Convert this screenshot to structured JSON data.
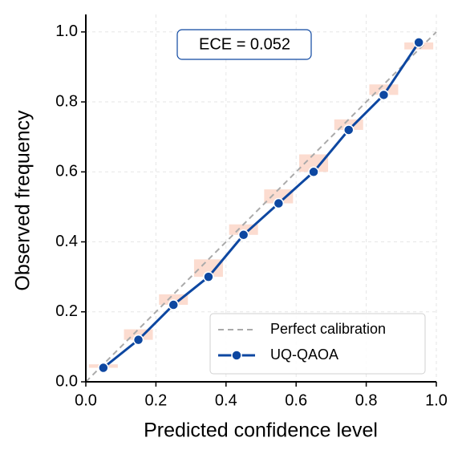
{
  "chart_data": {
    "type": "line",
    "x_label": "Predicted confidence level",
    "y_label": "Observed frequency",
    "annotation": "ECE = 0.052",
    "x": [
      0.05,
      0.15,
      0.25,
      0.35,
      0.45,
      0.55,
      0.65,
      0.75,
      0.85,
      0.95
    ],
    "series": [
      {
        "name": "UQ-QAOA",
        "color": "#0d47a1",
        "values": [
          0.04,
          0.12,
          0.22,
          0.3,
          0.42,
          0.51,
          0.6,
          0.72,
          0.82,
          0.97
        ]
      }
    ],
    "reference_line": {
      "name": "Perfect calibration",
      "color": "#aaaaaa",
      "x": [
        0,
        1
      ],
      "y": [
        0,
        1
      ]
    },
    "gap_color": "#fbd3c4",
    "xlim": [
      0,
      1
    ],
    "ylim": [
      0,
      1.05
    ],
    "xticks": [
      {
        "value": 0,
        "label": "0.0"
      },
      0.2,
      0.4,
      0.6,
      0.8,
      {
        "value": 1,
        "label": "1.0"
      }
    ],
    "yticks": [
      {
        "value": 0,
        "label": "0.0"
      },
      0.2,
      0.4,
      0.6,
      0.8,
      {
        "value": 1,
        "label": "1.0"
      }
    ],
    "grid": true,
    "legend_position": "lower right"
  }
}
